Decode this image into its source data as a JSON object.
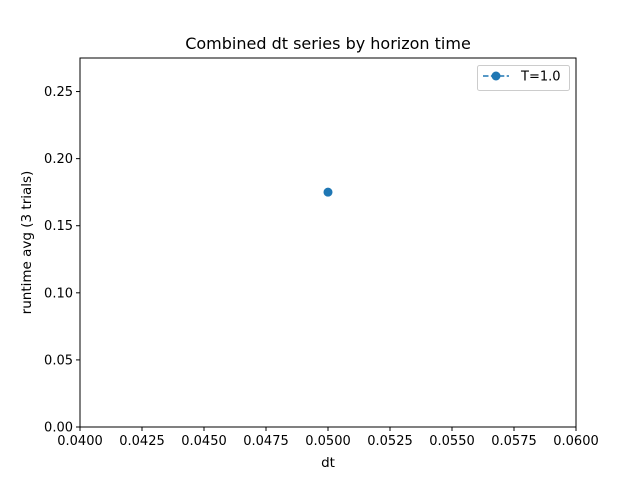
{
  "chart_data": {
    "type": "line",
    "title": "Combined dt series by horizon time",
    "xlabel": "dt",
    "ylabel": "runtime avg (3 trials)",
    "xlim": [
      0.04,
      0.06
    ],
    "ylim": [
      0.0,
      0.275
    ],
    "x_ticks": [
      "0.0400",
      "0.0425",
      "0.0450",
      "0.0475",
      "0.0500",
      "0.0525",
      "0.0550",
      "0.0575",
      "0.0600"
    ],
    "x_tick_values": [
      0.04,
      0.0425,
      0.045,
      0.0475,
      0.05,
      0.0525,
      0.055,
      0.0575,
      0.06
    ],
    "y_ticks": [
      "0.00",
      "0.05",
      "0.10",
      "0.15",
      "0.20",
      "0.25"
    ],
    "y_tick_values": [
      0.0,
      0.05,
      0.1,
      0.15,
      0.2,
      0.25
    ],
    "grid": false,
    "legend_position": "top-right",
    "series": [
      {
        "name": "T=1.0",
        "x": [
          0.05
        ],
        "y": [
          0.175
        ],
        "color": "#1f77b4",
        "linestyle": "dashed",
        "marker": "circle"
      }
    ]
  }
}
